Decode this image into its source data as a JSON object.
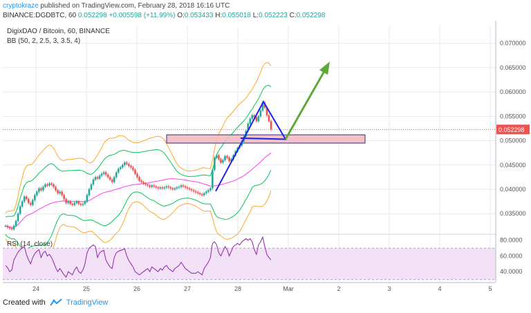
{
  "header": {
    "author": "cryptokraze",
    "published": "published on TradingView.com, February 28, 2018 16:16 UTC"
  },
  "symbol_bar": {
    "symbol": "BINANCE:DGDBTC, 60",
    "last": "0.052298",
    "change": "+0.005598 (+11.99%)",
    "open_label": "O:",
    "open": "0.053433",
    "high_label": "H:",
    "high": "0.055018",
    "low_label": "L:",
    "low": "0.052223",
    "close_label": "C:",
    "close": "0.052298"
  },
  "footer": {
    "created_with": "Created with",
    "brand": "TradingView"
  },
  "colors": {
    "up": "#26a69a",
    "down": "#ef5350",
    "bb_outer": "#ffa726",
    "bb_mid": "#ff3df0",
    "bb_inner": "#00c853",
    "triangle": "#1e22e0",
    "arrow": "#5ea83a",
    "zone": "#f2b8bf",
    "rsi_line": "#8e24aa",
    "rsi_fill": "#f3e1f8",
    "grid": "#e6eaf0"
  },
  "chart_data": {
    "type": "candlestick",
    "title": "DigixDAO / Bitcoin, 60, BINANCE",
    "indicator_label": "BB (50, 2, 2.5, 3, 3.5, 4)",
    "last_price_label": "0.052298",
    "y_ticks": [
      "0.070000",
      "0.065000",
      "0.060000",
      "0.055000",
      "0.050000",
      "0.045000",
      "0.040000",
      "0.035000"
    ],
    "x_labels": [
      "24",
      "25",
      "26",
      "27",
      "28",
      "Mar",
      "2",
      "3",
      "4",
      "5"
    ],
    "ylim": [
      0.0312,
      0.0735
    ],
    "close": [
      0.0325,
      0.0322,
      0.032,
      0.0318,
      0.0325,
      0.0335,
      0.035,
      0.0365,
      0.0375,
      0.0385,
      0.038,
      0.0372,
      0.0368,
      0.0378,
      0.0388,
      0.0395,
      0.0402,
      0.0398,
      0.0405,
      0.041,
      0.0408,
      0.0412,
      0.041,
      0.0405,
      0.0398,
      0.0392,
      0.0395,
      0.0388,
      0.038,
      0.0372,
      0.0375,
      0.037,
      0.0368,
      0.0372,
      0.0375,
      0.037,
      0.0368,
      0.037,
      0.0375,
      0.0388,
      0.04,
      0.041,
      0.042,
      0.0425,
      0.0422,
      0.0428,
      0.0432,
      0.0435,
      0.043,
      0.0425,
      0.042,
      0.0415,
      0.0425,
      0.0435,
      0.0442,
      0.0445,
      0.045,
      0.0455,
      0.0452,
      0.0448,
      0.0445,
      0.044,
      0.0432,
      0.0425,
      0.0418,
      0.0415,
      0.0412,
      0.041,
      0.0408,
      0.0405,
      0.0408,
      0.0406,
      0.0404,
      0.0402,
      0.0404,
      0.0402,
      0.0404,
      0.0406,
      0.0404,
      0.0402,
      0.04,
      0.0402,
      0.0404,
      0.0405,
      0.0408,
      0.0406,
      0.0404,
      0.0402,
      0.04,
      0.0398,
      0.0396,
      0.0394,
      0.0392,
      0.039,
      0.0388,
      0.0392,
      0.0395,
      0.0398,
      0.0402,
      0.044,
      0.0465,
      0.047,
      0.0462,
      0.0455,
      0.046,
      0.0468,
      0.0465,
      0.0458,
      0.0462,
      0.047,
      0.0478,
      0.0485,
      0.049,
      0.0498,
      0.0508,
      0.052,
      0.0535,
      0.0545,
      0.0552,
      0.0548,
      0.054,
      0.055,
      0.0562,
      0.0578,
      0.0568,
      0.0552,
      0.054,
      0.0523
    ],
    "rsi": {
      "label": "RSI (14, close)",
      "y_ticks": [
        "80.0000",
        "60.0000",
        "40.0000"
      ],
      "ylim": [
        27,
        85
      ],
      "band": [
        30,
        70
      ],
      "values": [
        48,
        45,
        40,
        42,
        55,
        60,
        65,
        68,
        70,
        72,
        62,
        55,
        50,
        58,
        63,
        66,
        68,
        58,
        64,
        66,
        60,
        62,
        58,
        52,
        45,
        40,
        44,
        40,
        36,
        33,
        40,
        38,
        36,
        42,
        46,
        40,
        38,
        42,
        50,
        64,
        70,
        72,
        74,
        72,
        58,
        64,
        66,
        67,
        55,
        50,
        46,
        44,
        58,
        64,
        66,
        67,
        68,
        69,
        60,
        54,
        50,
        46,
        40,
        38,
        36,
        38,
        40,
        42,
        44,
        40,
        46,
        44,
        42,
        40,
        44,
        42,
        46,
        48,
        44,
        42,
        40,
        44,
        46,
        48,
        52,
        48,
        44,
        42,
        40,
        38,
        38,
        38,
        40,
        38,
        36,
        44,
        48,
        52,
        58,
        76,
        78,
        74,
        64,
        60,
        66,
        72,
        68,
        60,
        66,
        72,
        74,
        76,
        74,
        78,
        80,
        82,
        80,
        82,
        78,
        68,
        62,
        74,
        78,
        84,
        72,
        62,
        58,
        55
      ]
    }
  }
}
